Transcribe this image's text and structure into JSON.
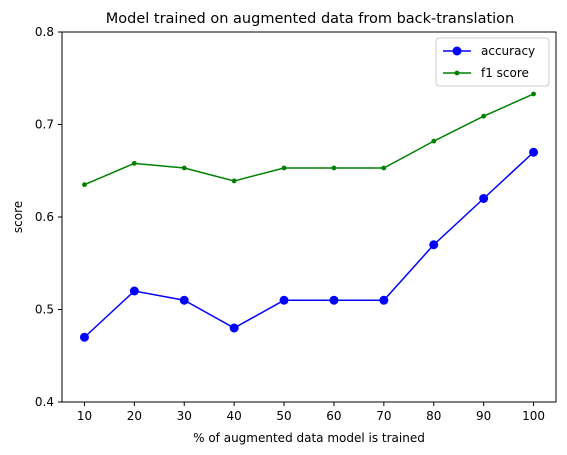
{
  "chart_data": {
    "type": "line",
    "title": "Model trained on augmented data from back-translation",
    "xlabel": "% of augmented data model is trained",
    "ylabel": "score",
    "x": [
      10,
      20,
      30,
      40,
      50,
      60,
      70,
      80,
      90,
      100
    ],
    "series": [
      {
        "name": "accuracy",
        "color": "#0000ff",
        "marker": "large-dot",
        "values": [
          0.47,
          0.52,
          0.51,
          0.48,
          0.51,
          0.51,
          0.51,
          0.57,
          0.62,
          0.67
        ]
      },
      {
        "name": "f1 score",
        "color": "#008000",
        "marker": "small-dot",
        "values": [
          0.635,
          0.658,
          0.653,
          0.639,
          0.653,
          0.653,
          0.653,
          0.682,
          0.709,
          0.733
        ]
      }
    ],
    "xticks": [
      "10",
      "20",
      "30",
      "40",
      "50",
      "60",
      "70",
      "80",
      "90",
      "100"
    ],
    "yticks": [
      "0.4",
      "0.5",
      "0.6",
      "0.7",
      "0.8"
    ],
    "ytick_values": [
      0.4,
      0.5,
      0.6,
      0.7,
      0.8
    ],
    "xlim": [
      5.5,
      104.5
    ],
    "ylim": [
      0.4,
      0.8
    ],
    "grid": false,
    "legend_position": "top-right"
  }
}
